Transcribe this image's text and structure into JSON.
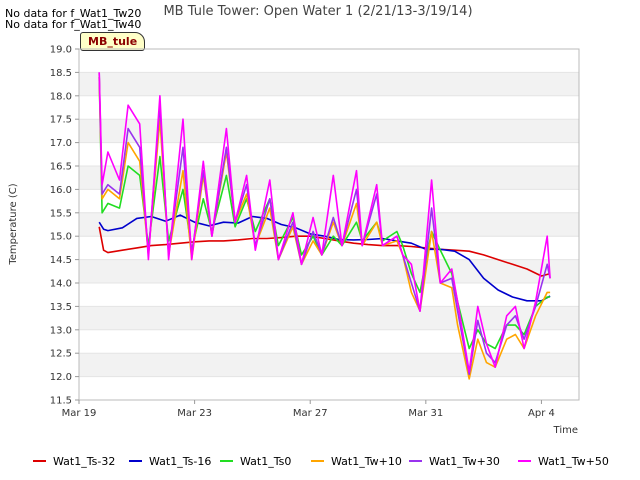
{
  "notes": [
    "No data for f_Wat1_Tw20",
    "No data for f_Wat1_Tw40"
  ],
  "site_tag": "MB_tule",
  "chart_data": {
    "type": "line",
    "title": "MB Tule Tower: Open Water 1 (2/21/13-3/19/14)",
    "xlabel": "Time",
    "ylabel": "Temperature (C)",
    "xlim": [
      0,
      17.3
    ],
    "ylim": [
      11.5,
      19.0
    ],
    "x_tick_values": [
      0,
      4,
      8,
      12,
      16
    ],
    "x_tick_labels": [
      "Mar 19",
      "Mar 23",
      "Mar 27",
      "Mar 31",
      "Apr 4"
    ],
    "y_ticks": [
      11.5,
      12.0,
      12.5,
      13.0,
      13.5,
      14.0,
      14.5,
      15.0,
      15.5,
      16.0,
      16.5,
      17.0,
      17.5,
      18.0,
      18.5,
      19.0
    ],
    "grid": "horizontal bands",
    "legend_position": "bottom",
    "series": [
      {
        "name": "Wat1_Ts-32",
        "color": "#dd0000",
        "x": [
          0.7,
          0.85,
          1.0,
          1.5,
          2.0,
          2.5,
          3.0,
          3.5,
          4.0,
          4.5,
          5.0,
          5.5,
          6.0,
          6.5,
          7.0,
          7.5,
          8.0,
          8.5,
          9.0,
          9.5,
          10.0,
          10.5,
          11.0,
          11.5,
          12.0,
          12.5,
          13.0,
          13.5,
          14.0,
          14.5,
          15.0,
          15.5,
          16.0,
          16.3
        ],
        "y": [
          15.2,
          14.7,
          14.65,
          14.7,
          14.75,
          14.8,
          14.82,
          14.85,
          14.88,
          14.9,
          14.9,
          14.92,
          14.95,
          14.95,
          14.97,
          15.0,
          15.0,
          14.95,
          14.9,
          14.85,
          14.82,
          14.8,
          14.8,
          14.78,
          14.75,
          14.72,
          14.7,
          14.68,
          14.6,
          14.5,
          14.4,
          14.3,
          14.15,
          14.2
        ]
      },
      {
        "name": "Wat1_Ts-16",
        "color": "#0000cc",
        "x": [
          0.7,
          0.85,
          1.0,
          1.5,
          2.0,
          2.5,
          3.0,
          3.5,
          4.0,
          4.5,
          5.0,
          5.5,
          6.0,
          6.5,
          7.0,
          7.5,
          8.0,
          8.5,
          9.0,
          9.5,
          10.0,
          10.5,
          11.0,
          11.5,
          12.0,
          12.5,
          13.0,
          13.5,
          14.0,
          14.5,
          15.0,
          15.5,
          16.0,
          16.3
        ],
        "y": [
          15.3,
          15.15,
          15.12,
          15.18,
          15.38,
          15.42,
          15.32,
          15.45,
          15.3,
          15.22,
          15.3,
          15.28,
          15.42,
          15.38,
          15.25,
          15.18,
          15.05,
          15.0,
          14.93,
          14.92,
          14.93,
          14.95,
          14.9,
          14.85,
          14.72,
          14.72,
          14.68,
          14.5,
          14.1,
          13.85,
          13.7,
          13.62,
          13.62,
          13.72
        ]
      },
      {
        "name": "Wat1_Ts0",
        "color": "#22dd22",
        "x": [
          0.7,
          0.8,
          1.0,
          1.4,
          1.7,
          2.1,
          2.4,
          2.8,
          3.1,
          3.6,
          3.9,
          4.3,
          4.6,
          5.1,
          5.4,
          5.8,
          6.1,
          6.6,
          6.9,
          7.4,
          7.7,
          8.1,
          8.4,
          8.8,
          9.1,
          9.6,
          9.8,
          10.3,
          10.5,
          11.0,
          11.2,
          11.5,
          11.8,
          12.2,
          12.5,
          12.9,
          13.1,
          13.5,
          13.8,
          14.1,
          14.4,
          14.8,
          15.1,
          15.4,
          15.8,
          16.2,
          16.3
        ],
        "y": [
          18.4,
          15.5,
          15.7,
          15.6,
          16.5,
          16.3,
          14.8,
          16.7,
          14.9,
          16.0,
          14.7,
          15.8,
          15.1,
          16.3,
          15.2,
          15.8,
          15.1,
          15.8,
          14.8,
          15.4,
          14.6,
          15.0,
          14.6,
          15.0,
          14.8,
          15.3,
          14.9,
          15.3,
          14.9,
          15.1,
          14.8,
          14.2,
          13.8,
          15.1,
          14.7,
          14.2,
          13.6,
          12.6,
          13.0,
          12.7,
          12.6,
          13.1,
          13.1,
          12.9,
          13.5,
          13.7,
          13.7
        ]
      },
      {
        "name": "Wat1_Tw+10",
        "color": "#ffa500",
        "x": [
          0.7,
          0.8,
          1.0,
          1.4,
          1.7,
          2.1,
          2.4,
          2.8,
          3.1,
          3.6,
          3.9,
          4.3,
          4.6,
          5.1,
          5.4,
          5.8,
          6.1,
          6.6,
          6.9,
          7.4,
          7.7,
          8.1,
          8.4,
          8.8,
          9.1,
          9.6,
          9.8,
          10.3,
          10.5,
          11.0,
          11.2,
          11.5,
          11.8,
          12.2,
          12.5,
          12.9,
          13.1,
          13.5,
          13.8,
          14.1,
          14.4,
          14.8,
          15.1,
          15.4,
          15.8,
          16.2,
          16.3
        ],
        "y": [
          18.4,
          15.8,
          16.0,
          15.8,
          17.0,
          16.6,
          14.6,
          17.5,
          14.6,
          16.4,
          14.5,
          16.3,
          15.0,
          16.8,
          15.3,
          15.9,
          14.8,
          15.6,
          14.5,
          15.2,
          14.4,
          14.9,
          14.6,
          15.3,
          14.8,
          15.7,
          14.8,
          15.3,
          14.8,
          14.9,
          14.6,
          13.8,
          13.4,
          15.1,
          14.0,
          13.9,
          13.1,
          11.95,
          12.8,
          12.3,
          12.2,
          12.8,
          12.9,
          12.6,
          13.3,
          13.8,
          13.8
        ]
      },
      {
        "name": "Wat1_Tw+30",
        "color": "#9933ee",
        "x": [
          0.7,
          0.8,
          1.0,
          1.4,
          1.7,
          2.1,
          2.4,
          2.8,
          3.1,
          3.6,
          3.9,
          4.3,
          4.6,
          5.1,
          5.4,
          5.8,
          6.1,
          6.6,
          6.9,
          7.4,
          7.7,
          8.1,
          8.4,
          8.8,
          9.1,
          9.6,
          9.8,
          10.3,
          10.5,
          11.0,
          11.2,
          11.5,
          11.8,
          12.2,
          12.5,
          12.9,
          13.1,
          13.5,
          13.8,
          14.1,
          14.4,
          14.8,
          15.1,
          15.4,
          15.8,
          16.2,
          16.3
        ],
        "y": [
          18.5,
          15.9,
          16.1,
          15.9,
          17.3,
          16.9,
          14.6,
          17.8,
          14.6,
          16.9,
          14.6,
          16.4,
          15.0,
          16.9,
          15.3,
          16.1,
          14.8,
          15.8,
          14.5,
          15.3,
          14.4,
          15.1,
          14.6,
          15.4,
          14.8,
          16.0,
          14.8,
          15.9,
          14.8,
          15.0,
          14.6,
          14.0,
          13.4,
          15.6,
          14.0,
          14.1,
          13.4,
          12.05,
          13.2,
          12.5,
          12.3,
          13.1,
          13.3,
          12.8,
          13.5,
          14.4,
          14.1
        ]
      },
      {
        "name": "Wat1_Tw+50",
        "color": "#ff00ff",
        "x": [
          0.7,
          0.8,
          1.0,
          1.4,
          1.7,
          2.1,
          2.4,
          2.8,
          3.1,
          3.6,
          3.9,
          4.3,
          4.6,
          5.1,
          5.4,
          5.8,
          6.1,
          6.6,
          6.9,
          7.4,
          7.7,
          8.1,
          8.4,
          8.8,
          9.1,
          9.6,
          9.8,
          10.3,
          10.5,
          11.0,
          11.2,
          11.5,
          11.8,
          12.2,
          12.5,
          12.9,
          13.1,
          13.5,
          13.8,
          14.1,
          14.4,
          14.8,
          15.1,
          15.4,
          15.8,
          16.2,
          16.3
        ],
        "y": [
          18.5,
          16.1,
          16.8,
          16.2,
          17.8,
          17.4,
          14.5,
          18.0,
          14.5,
          17.5,
          14.5,
          16.6,
          15.0,
          17.3,
          15.3,
          16.3,
          14.7,
          16.2,
          14.5,
          15.5,
          14.4,
          15.4,
          14.6,
          16.3,
          14.8,
          16.4,
          14.8,
          16.1,
          14.8,
          15.0,
          14.6,
          14.4,
          13.4,
          16.2,
          14.0,
          14.3,
          13.6,
          12.1,
          13.5,
          12.7,
          12.2,
          13.3,
          13.5,
          12.6,
          13.6,
          15.0,
          14.1
        ]
      }
    ]
  }
}
